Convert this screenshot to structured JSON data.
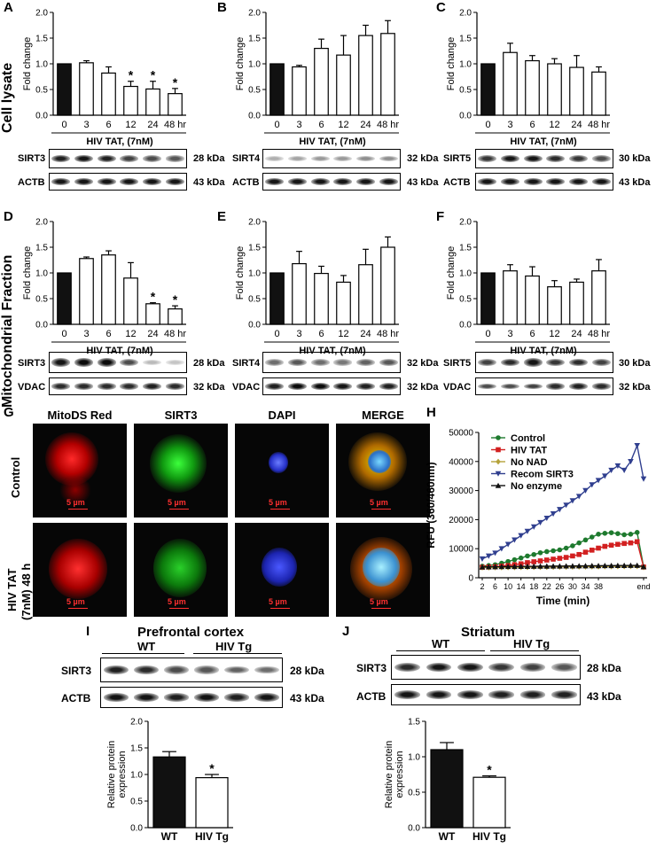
{
  "figure": {
    "row_labels": {
      "cell_lysate": "Cell lysate",
      "mito_fraction": "Mitochondrial Fraction"
    },
    "panels": {
      "A": {
        "letter": "A",
        "xlabel": "HIV TAT, (7nM)",
        "blot_top": "SIRT3",
        "kda_top": "28 kDa",
        "blot_bottom": "ACTB",
        "kda_bottom": "43 kDa"
      },
      "B": {
        "letter": "B",
        "xlabel": "HIV TAT, (7nM)",
        "blot_top": "SIRT4",
        "kda_top": "32 kDa",
        "blot_bottom": "ACTB",
        "kda_bottom": "43 kDa"
      },
      "C": {
        "letter": "C",
        "xlabel": "HIV TAT, (7nM)",
        "blot_top": "SIRT5",
        "kda_top": "30 kDa",
        "blot_bottom": "ACTB",
        "kda_bottom": "43 kDa"
      },
      "D": {
        "letter": "D",
        "xlabel": "HIV TAT, (7nM)",
        "blot_top": "SIRT3",
        "kda_top": "28 kDa",
        "blot_bottom": "VDAC",
        "kda_bottom": "32 kDa"
      },
      "E": {
        "letter": "E",
        "xlabel": "HIV TAT, (7nM)",
        "blot_top": "SIRT4",
        "kda_top": "32 kDa",
        "blot_bottom": "VDAC",
        "kda_bottom": "32 kDa"
      },
      "F": {
        "letter": "F",
        "xlabel": "HIV TAT, (7nM)",
        "blot_top": "SIRT5",
        "kda_top": "30 kDa",
        "blot_bottom": "VDAC",
        "kda_bottom": "32 kDa"
      },
      "G": {
        "letter": "G",
        "channels": [
          "MitoDS Red",
          "SIRT3",
          "DAPI",
          "MERGE"
        ],
        "row1": "Control",
        "row2a": "HIV TAT",
        "row2b": "(7nM) 48 h",
        "scale": "5 µm"
      },
      "H": {
        "letter": "H"
      },
      "I": {
        "letter": "I",
        "title": "Prefrontal cortex",
        "group_wt": "WT",
        "group_tg": "HIV Tg",
        "blot_top": "SIRT3",
        "kda_top": "28 kDa",
        "blot_bottom": "ACTB",
        "kda_bottom": "43 kDa"
      },
      "J": {
        "letter": "J",
        "title": "Striatum",
        "group_wt": "WT",
        "group_tg": "HIV Tg",
        "blot_top": "SIRT3",
        "kda_top": "28 kDa",
        "blot_bottom": "ACTB",
        "kda_bottom": "43 kDa"
      }
    }
  },
  "chart_data": [
    {
      "id": "A",
      "type": "bar",
      "categories": [
        "0",
        "3",
        "6",
        "12",
        "24",
        "48 hr"
      ],
      "values": [
        1.0,
        1.02,
        0.82,
        0.56,
        0.51,
        0.42
      ],
      "errors": [
        0,
        0.04,
        0.12,
        0.1,
        0.15,
        0.1
      ],
      "sig": [
        false,
        false,
        false,
        true,
        true,
        true
      ],
      "ylabel": "Fold change",
      "ylim": [
        0,
        2.0
      ],
      "ticks": [
        "0.0",
        "0.5",
        "1.0",
        "1.5",
        "2.0"
      ]
    },
    {
      "id": "B",
      "type": "bar",
      "categories": [
        "0",
        "3",
        "6",
        "12",
        "24",
        "48 hr"
      ],
      "values": [
        1.0,
        0.94,
        1.3,
        1.17,
        1.55,
        1.59
      ],
      "errors": [
        0,
        0.03,
        0.18,
        0.38,
        0.2,
        0.25
      ],
      "sig": [
        false,
        false,
        false,
        false,
        false,
        false
      ],
      "ylabel": "Fold change",
      "ylim": [
        0,
        2.0
      ],
      "ticks": [
        "0.0",
        "0.5",
        "1.0",
        "1.5",
        "2.0"
      ]
    },
    {
      "id": "C",
      "type": "bar",
      "categories": [
        "0",
        "3",
        "6",
        "12",
        "24",
        "48 hr"
      ],
      "values": [
        1.0,
        1.22,
        1.06,
        1.0,
        0.93,
        0.84
      ],
      "errors": [
        0,
        0.18,
        0.1,
        0.1,
        0.23,
        0.1
      ],
      "sig": [
        false,
        false,
        false,
        false,
        false,
        false
      ],
      "ylabel": "Fold change",
      "ylim": [
        0,
        2.0
      ],
      "ticks": [
        "0.0",
        "0.5",
        "1.0",
        "1.5",
        "2.0"
      ]
    },
    {
      "id": "D",
      "type": "bar",
      "categories": [
        "0",
        "3",
        "6",
        "12",
        "24",
        "48 hr"
      ],
      "values": [
        1.0,
        1.28,
        1.35,
        0.9,
        0.4,
        0.3
      ],
      "errors": [
        0,
        0.03,
        0.08,
        0.3,
        0.02,
        0.06
      ],
      "sig": [
        false,
        false,
        false,
        false,
        true,
        true
      ],
      "ylabel": "Fold change",
      "ylim": [
        0,
        2.0
      ],
      "ticks": [
        "0.0",
        "0.5",
        "1.0",
        "1.5",
        "2.0"
      ]
    },
    {
      "id": "E",
      "type": "bar",
      "categories": [
        "0",
        "3",
        "6",
        "12",
        "24",
        "48 hr"
      ],
      "values": [
        1.0,
        1.18,
        0.99,
        0.82,
        1.16,
        1.5
      ],
      "errors": [
        0,
        0.24,
        0.14,
        0.13,
        0.3,
        0.2
      ],
      "sig": [
        false,
        false,
        false,
        false,
        false,
        false
      ],
      "ylabel": "Fold change",
      "ylim": [
        0,
        2.0
      ],
      "ticks": [
        "0.0",
        "0.5",
        "1.0",
        "1.5",
        "2.0"
      ]
    },
    {
      "id": "F",
      "type": "bar",
      "categories": [
        "0",
        "3",
        "6",
        "12",
        "24",
        "48 hr"
      ],
      "values": [
        1.0,
        1.04,
        0.94,
        0.73,
        0.82,
        1.04
      ],
      "errors": [
        0,
        0.12,
        0.18,
        0.12,
        0.06,
        0.22
      ],
      "sig": [
        false,
        false,
        false,
        false,
        false,
        false
      ],
      "ylabel": "Fold change",
      "ylim": [
        0,
        2.0
      ],
      "ticks": [
        "0.0",
        "0.5",
        "1.0",
        "1.5",
        "2.0"
      ]
    },
    {
      "id": "H",
      "type": "line",
      "ylabel": "RFU (360/460nm)",
      "xlabel": "Time (min)",
      "ylim": [
        0,
        50000
      ],
      "yticks": [
        "0",
        "10000",
        "20000",
        "30000",
        "40000",
        "50000"
      ],
      "xticks": [
        "2",
        "6",
        "10",
        "14",
        "18",
        "22",
        "26",
        "30",
        "34",
        "38",
        "end"
      ],
      "series": [
        {
          "name": "Control",
          "color": "#1e7a2e",
          "marker": "circle",
          "values": [
            4000,
            4200,
            4500,
            5000,
            5600,
            6200,
            6800,
            7500,
            8000,
            8600,
            9000,
            9300,
            9600,
            10200,
            11000,
            12000,
            13000,
            14000,
            15000,
            15300,
            15500,
            15200,
            14800,
            15000,
            15600,
            3800
          ]
        },
        {
          "name": "HIV TAT",
          "color": "#d22020",
          "marker": "square",
          "values": [
            3600,
            3700,
            3800,
            4000,
            4200,
            4500,
            4800,
            5200,
            5500,
            5800,
            6100,
            6400,
            6700,
            7000,
            7500,
            8000,
            8800,
            9500,
            10200,
            10800,
            11200,
            11500,
            11800,
            12000,
            12400,
            3700
          ]
        },
        {
          "name": "No NAD",
          "color": "#b5a23a",
          "marker": "diamond",
          "values": [
            3500,
            3520,
            3540,
            3560,
            3580,
            3600,
            3620,
            3640,
            3660,
            3680,
            3700,
            3720,
            3740,
            3760,
            3780,
            3800,
            3820,
            3840,
            3860,
            3880,
            3900,
            3920,
            3940,
            3960,
            3980,
            3600
          ]
        },
        {
          "name": "Recom SIRT3",
          "color": "#303f8f",
          "marker": "triangle-down",
          "values": [
            6500,
            7500,
            8500,
            10000,
            11500,
            13000,
            14500,
            16000,
            17500,
            19000,
            20500,
            22000,
            23500,
            25000,
            26500,
            28000,
            30000,
            32000,
            33500,
            35000,
            37000,
            38500,
            37000,
            40000,
            45500,
            34000
          ]
        },
        {
          "name": "No enzyme",
          "color": "#111111",
          "marker": "triangle-up",
          "values": [
            3700,
            3750,
            3800,
            3820,
            3850,
            3880,
            3900,
            3920,
            3940,
            3960,
            3980,
            4000,
            4020,
            4040,
            4060,
            4080,
            4100,
            4120,
            4140,
            4160,
            4180,
            4200,
            4220,
            4240,
            4260,
            3800
          ]
        }
      ]
    },
    {
      "id": "I",
      "type": "bar",
      "categories": [
        "WT",
        "HIV Tg"
      ],
      "values": [
        1.33,
        0.94
      ],
      "errors": [
        0.1,
        0.06
      ],
      "sig": [
        false,
        true
      ],
      "ylabel": "Relative protein expression",
      "ylim": [
        0,
        2.0
      ],
      "ticks": [
        "0.0",
        "0.5",
        "1.0",
        "1.5",
        "2.0"
      ]
    },
    {
      "id": "J",
      "type": "bar",
      "categories": [
        "WT",
        "HIV Tg"
      ],
      "values": [
        1.1,
        0.71
      ],
      "errors": [
        0.1,
        0.02
      ],
      "sig": [
        false,
        true
      ],
      "ylabel": "Relative protein expression",
      "ylim": [
        0,
        1.5
      ],
      "ticks": [
        "0.0",
        "0.5",
        "1.0",
        "1.5"
      ]
    }
  ]
}
